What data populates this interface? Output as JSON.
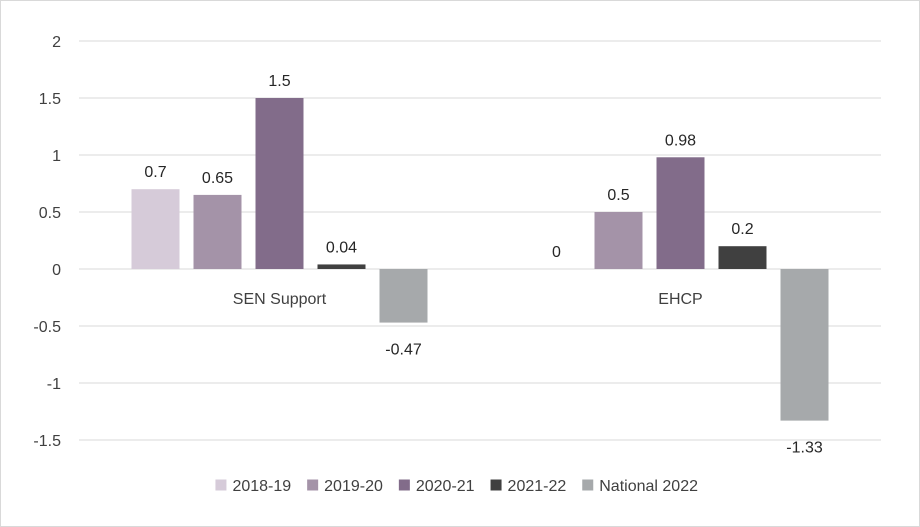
{
  "chart_data": {
    "type": "bar",
    "title": "",
    "xlabel": "",
    "ylabel": "",
    "ylim": [
      -1.5,
      2
    ],
    "yticks": [
      2,
      1.5,
      1,
      0.5,
      0,
      -0.5,
      -1,
      -1.5
    ],
    "ytick_labels": [
      "2",
      "1.5",
      "1",
      "0.5",
      "0",
      "-0.5",
      "-1",
      "-1.5"
    ],
    "grid": true,
    "legend_position": "bottom",
    "categories": [
      "SEN Support",
      "EHCP"
    ],
    "series": [
      {
        "name": "2018-19",
        "color": "#d6cbd9",
        "values": [
          0.7,
          0
        ],
        "labels": [
          "0.7",
          "0"
        ]
      },
      {
        "name": "2019-20",
        "color": "#a493a8",
        "values": [
          0.65,
          0.5
        ],
        "labels": [
          "0.65",
          "0.5"
        ]
      },
      {
        "name": "2020-21",
        "color": "#826c8a",
        "values": [
          1.5,
          0.98
        ],
        "labels": [
          "1.5",
          "0.98"
        ]
      },
      {
        "name": "2021-22",
        "color": "#404040",
        "values": [
          0.04,
          0.2
        ],
        "labels": [
          "0.04",
          "0.2"
        ]
      },
      {
        "name": "National 2022",
        "color": "#a6a9ab",
        "values": [
          -0.47,
          -1.33
        ],
        "labels": [
          "-0.47",
          "-1.33"
        ]
      }
    ]
  }
}
